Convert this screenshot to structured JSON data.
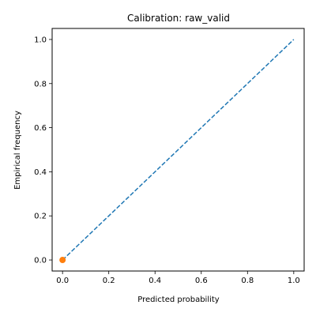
{
  "chart_data": {
    "type": "line",
    "title": "Calibration: raw_valid",
    "xlabel": "Predicted probability",
    "ylabel": "Empirical frequency",
    "xlim": [
      -0.045,
      1.045
    ],
    "ylim": [
      -0.05,
      1.05
    ],
    "xticks": [
      0.0,
      0.2,
      0.4,
      0.6,
      0.8,
      1.0
    ],
    "yticks": [
      0.0,
      0.2,
      0.4,
      0.6,
      0.8,
      1.0
    ],
    "xtick_labels": [
      "0.0",
      "0.2",
      "0.4",
      "0.6",
      "0.8",
      "1.0"
    ],
    "ytick_labels": [
      "0.0",
      "0.2",
      "0.4",
      "0.6",
      "0.8",
      "1.0"
    ],
    "grid": false,
    "legend": "none",
    "series": [
      {
        "style": "dashed-line",
        "color": "#1f77b4",
        "x": [
          0.0,
          1.0
        ],
        "y": [
          0.0,
          1.0
        ]
      },
      {
        "style": "marker-line",
        "color": "#ff7f0e",
        "x": [
          0.0
        ],
        "y": [
          0.0
        ]
      }
    ]
  }
}
